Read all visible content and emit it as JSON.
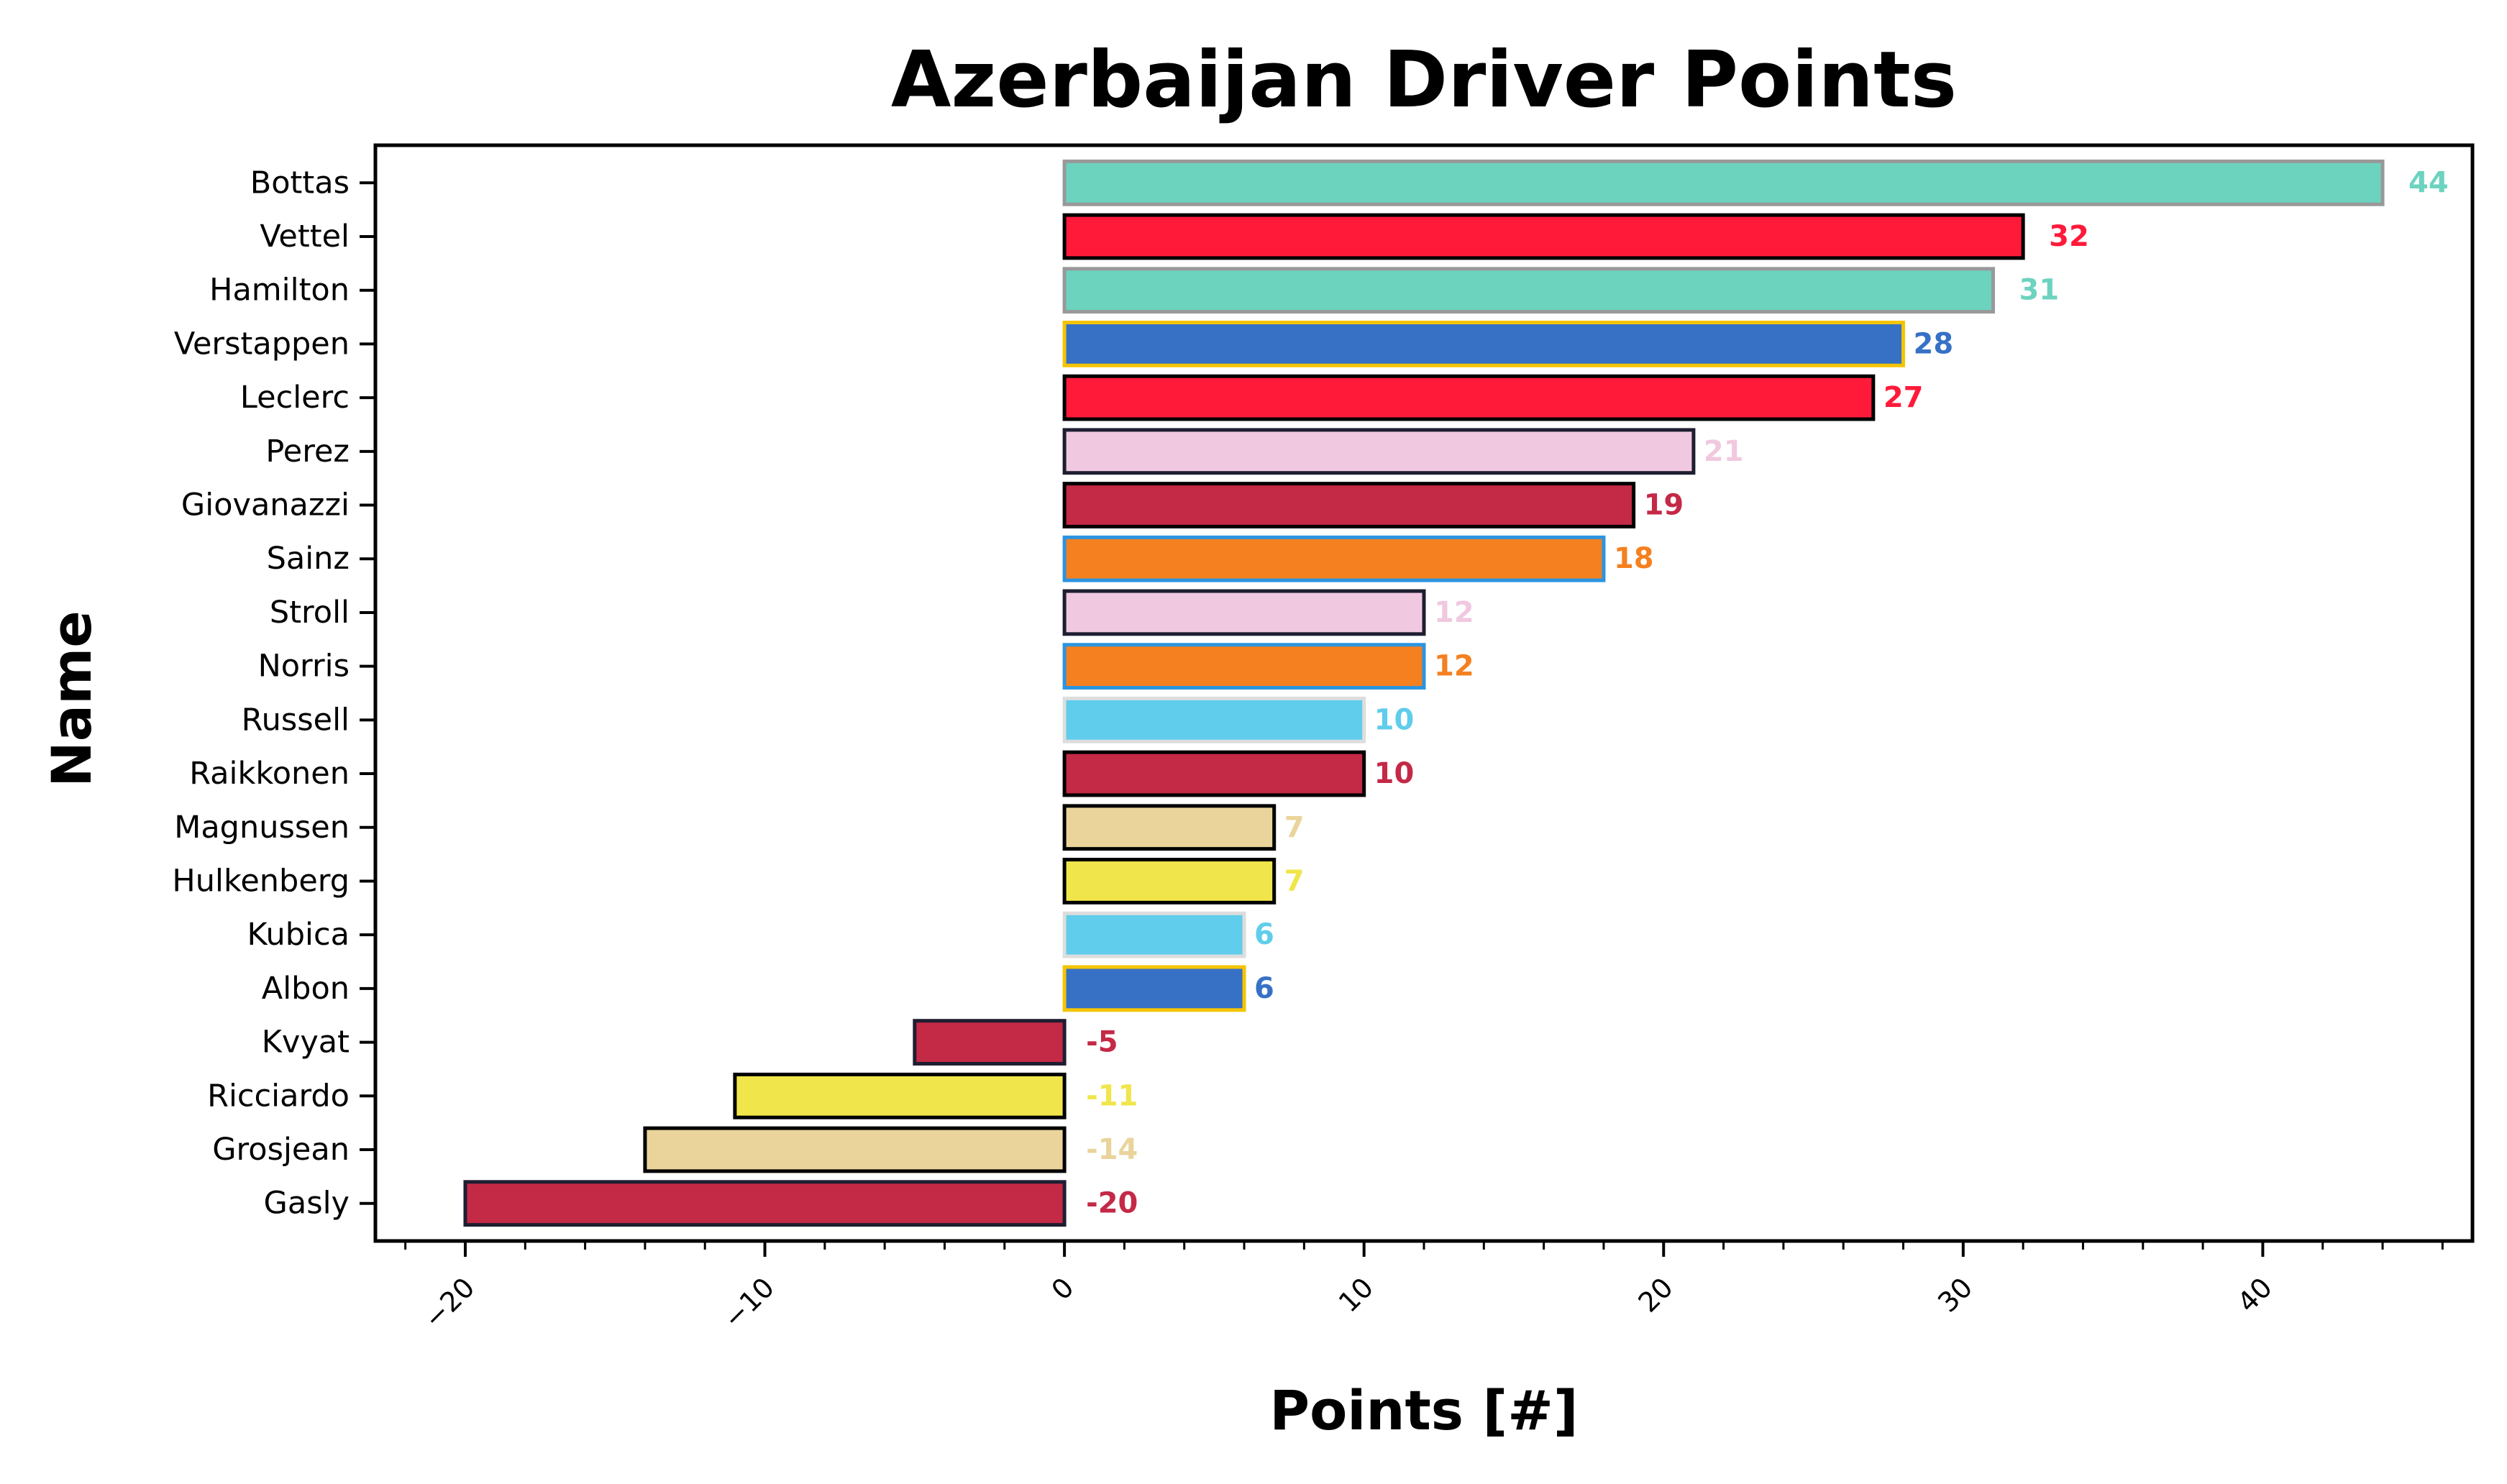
{
  "chart_data": {
    "type": "bar",
    "orientation": "horizontal",
    "title": "Azerbaijan Driver Points",
    "xlabel": "Points [#]",
    "ylabel": "Name",
    "xlim": [
      -23,
      47
    ],
    "xticks": [
      -20,
      -10,
      0,
      10,
      20,
      30,
      40
    ],
    "xtick_labels": [
      "−20",
      "−10",
      "0",
      "10",
      "20",
      "30",
      "40"
    ],
    "grid": false,
    "legend": "none",
    "bars": [
      {
        "name": "Bottas",
        "value": 44,
        "value_label": "44",
        "fill": "#6CD3BF",
        "edge": "#999999"
      },
      {
        "name": "Vettel",
        "value": 32,
        "value_label": "32",
        "fill": "#FF1A3A",
        "edge": "#000000"
      },
      {
        "name": "Hamilton",
        "value": 31,
        "value_label": "31",
        "fill": "#6CD3BF",
        "edge": "#999999"
      },
      {
        "name": "Verstappen",
        "value": 28,
        "value_label": "28",
        "fill": "#3671C6",
        "edge": "#F5C400"
      },
      {
        "name": "Leclerc",
        "value": 27,
        "value_label": "27",
        "fill": "#FF1A3A",
        "edge": "#000000"
      },
      {
        "name": "Perez",
        "value": 21,
        "value_label": "21",
        "fill": "#F0C8DF",
        "edge": "#1E1E32"
      },
      {
        "name": "Giovanazzi",
        "value": 19,
        "value_label": "19",
        "fill": "#C42946",
        "edge": "#000000"
      },
      {
        "name": "Sainz",
        "value": 18,
        "value_label": "18",
        "fill": "#F58020",
        "edge": "#2B94E0"
      },
      {
        "name": "Stroll",
        "value": 12,
        "value_label": "12",
        "fill": "#F0C8DF",
        "edge": "#1E1E32"
      },
      {
        "name": "Norris",
        "value": 12,
        "value_label": "12",
        "fill": "#F58020",
        "edge": "#2B94E0"
      },
      {
        "name": "Russell",
        "value": 10,
        "value_label": "10",
        "fill": "#5FCDEB",
        "edge": "#DDDDDD"
      },
      {
        "name": "Raikkonen",
        "value": 10,
        "value_label": "10",
        "fill": "#C42946",
        "edge": "#000000"
      },
      {
        "name": "Magnussen",
        "value": 7,
        "value_label": "7",
        "fill": "#EAD49B",
        "edge": "#000000"
      },
      {
        "name": "Hulkenberg",
        "value": 7,
        "value_label": "7",
        "fill": "#F0E64B",
        "edge": "#000000"
      },
      {
        "name": "Kubica",
        "value": 6,
        "value_label": "6",
        "fill": "#5FCDEB",
        "edge": "#DDDDDD"
      },
      {
        "name": "Albon",
        "value": 6,
        "value_label": "6",
        "fill": "#3671C6",
        "edge": "#F5C400"
      },
      {
        "name": "Kvyat",
        "value": -5,
        "value_label": "-5",
        "fill": "#C42946",
        "edge": "#1E1E32"
      },
      {
        "name": "Ricciardo",
        "value": -11,
        "value_label": "-11",
        "fill": "#F0E64B",
        "edge": "#000000"
      },
      {
        "name": "Grosjean",
        "value": -14,
        "value_label": "-14",
        "fill": "#EAD49B",
        "edge": "#000000"
      },
      {
        "name": "Gasly",
        "value": -20,
        "value_label": "-20",
        "fill": "#C42946",
        "edge": "#1E1E32"
      }
    ]
  }
}
